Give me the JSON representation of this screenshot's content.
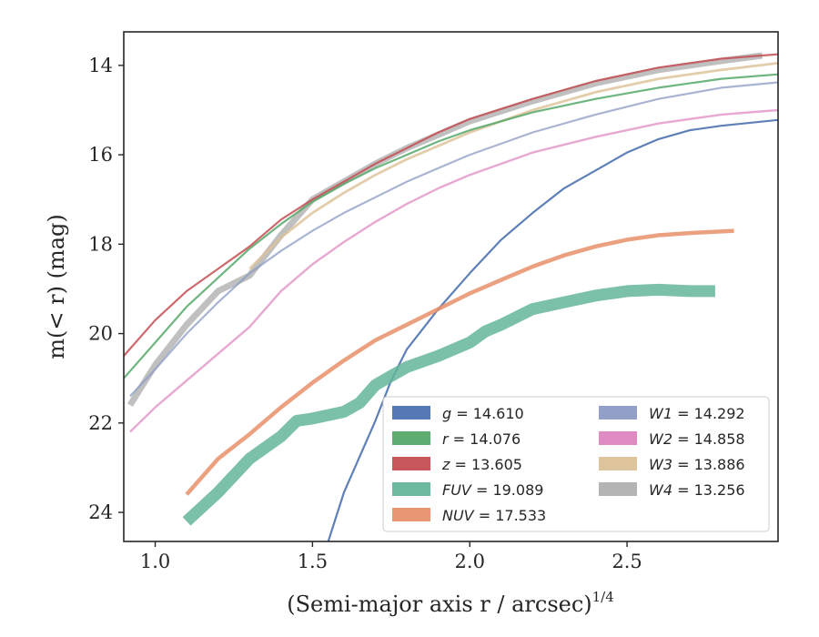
{
  "chart_data": {
    "type": "line",
    "xlabel": "(Semi-major axis r / arcsec)",
    "xlabel_exponent": "1/4",
    "ylabel": "m(< r) (mag)",
    "xlim": [
      0.9,
      2.98
    ],
    "ylim": [
      24.65,
      13.25
    ],
    "y_inverted": true,
    "grid": false,
    "legend_position": "lower-right",
    "legend_columns": 2,
    "x_ticks": [
      1.0,
      1.5,
      2.0,
      2.5
    ],
    "x_tick_labels": [
      "1.0",
      "1.5",
      "2.0",
      "2.5"
    ],
    "y_ticks": [
      14,
      16,
      18,
      20,
      22,
      24
    ],
    "y_tick_labels": [
      "14",
      "16",
      "18",
      "20",
      "22",
      "24"
    ],
    "series": [
      {
        "name": "g",
        "value": "14.610",
        "color": "#4c72b0",
        "points": [
          [
            1.55,
            24.65
          ],
          [
            1.6,
            23.55
          ],
          [
            1.65,
            22.75
          ],
          [
            1.7,
            21.95
          ],
          [
            1.75,
            21.05
          ],
          [
            1.8,
            20.35
          ],
          [
            1.9,
            19.45
          ],
          [
            2.0,
            18.65
          ],
          [
            2.1,
            17.9
          ],
          [
            2.2,
            17.3
          ],
          [
            2.3,
            16.75
          ],
          [
            2.4,
            16.35
          ],
          [
            2.5,
            15.95
          ],
          [
            2.6,
            15.65
          ],
          [
            2.7,
            15.45
          ],
          [
            2.8,
            15.35
          ],
          [
            2.98,
            15.22
          ]
        ]
      },
      {
        "name": "r",
        "value": "14.076",
        "color": "#55a868",
        "points": [
          [
            0.9,
            21.0
          ],
          [
            1.0,
            20.2
          ],
          [
            1.1,
            19.4
          ],
          [
            1.2,
            18.75
          ],
          [
            1.3,
            18.1
          ],
          [
            1.4,
            17.55
          ],
          [
            1.5,
            17.05
          ],
          [
            1.6,
            16.65
          ],
          [
            1.7,
            16.3
          ],
          [
            1.8,
            16.0
          ],
          [
            1.9,
            15.7
          ],
          [
            2.0,
            15.45
          ],
          [
            2.2,
            15.05
          ],
          [
            2.4,
            14.75
          ],
          [
            2.6,
            14.5
          ],
          [
            2.8,
            14.3
          ],
          [
            2.98,
            14.2
          ]
        ]
      },
      {
        "name": "z",
        "value": "13.605",
        "color": "#c44e52",
        "points": [
          [
            0.9,
            20.5
          ],
          [
            1.0,
            19.7
          ],
          [
            1.1,
            19.05
          ],
          [
            1.2,
            18.55
          ],
          [
            1.3,
            18.05
          ],
          [
            1.4,
            17.45
          ],
          [
            1.5,
            17.0
          ],
          [
            1.6,
            16.6
          ],
          [
            1.7,
            16.2
          ],
          [
            1.8,
            15.85
          ],
          [
            1.9,
            15.5
          ],
          [
            2.0,
            15.2
          ],
          [
            2.2,
            14.75
          ],
          [
            2.4,
            14.35
          ],
          [
            2.6,
            14.05
          ],
          [
            2.8,
            13.85
          ],
          [
            2.98,
            13.75
          ]
        ]
      },
      {
        "name": "FUV",
        "value": "19.089",
        "color": "#64b59a",
        "points": [
          [
            1.1,
            24.2
          ],
          [
            1.2,
            23.55
          ],
          [
            1.3,
            22.8
          ],
          [
            1.4,
            22.3
          ],
          [
            1.45,
            21.95
          ],
          [
            1.5,
            21.9
          ],
          [
            1.6,
            21.75
          ],
          [
            1.65,
            21.55
          ],
          [
            1.7,
            21.15
          ],
          [
            1.75,
            20.95
          ],
          [
            1.8,
            20.75
          ],
          [
            1.9,
            20.5
          ],
          [
            2.0,
            20.2
          ],
          [
            2.05,
            19.95
          ],
          [
            2.1,
            19.8
          ],
          [
            2.2,
            19.45
          ],
          [
            2.3,
            19.3
          ],
          [
            2.4,
            19.15
          ],
          [
            2.5,
            19.05
          ],
          [
            2.6,
            19.02
          ],
          [
            2.7,
            19.05
          ],
          [
            2.78,
            19.05
          ]
        ]
      },
      {
        "name": "NUV",
        "value": "17.533",
        "color": "#e8916a",
        "points": [
          [
            1.1,
            23.6
          ],
          [
            1.2,
            22.8
          ],
          [
            1.3,
            22.25
          ],
          [
            1.4,
            21.65
          ],
          [
            1.5,
            21.1
          ],
          [
            1.6,
            20.6
          ],
          [
            1.7,
            20.15
          ],
          [
            1.8,
            19.8
          ],
          [
            1.9,
            19.45
          ],
          [
            2.0,
            19.1
          ],
          [
            2.1,
            18.8
          ],
          [
            2.2,
            18.5
          ],
          [
            2.3,
            18.25
          ],
          [
            2.4,
            18.05
          ],
          [
            2.5,
            17.9
          ],
          [
            2.6,
            17.8
          ],
          [
            2.7,
            17.75
          ],
          [
            2.84,
            17.7
          ]
        ]
      },
      {
        "name": "W1",
        "value": "14.292",
        "color": "#8c9bc4",
        "points": [
          [
            0.92,
            21.4
          ],
          [
            1.0,
            20.8
          ],
          [
            1.1,
            20.0
          ],
          [
            1.2,
            19.3
          ],
          [
            1.3,
            18.65
          ],
          [
            1.4,
            18.15
          ],
          [
            1.5,
            17.7
          ],
          [
            1.6,
            17.3
          ],
          [
            1.7,
            16.95
          ],
          [
            1.8,
            16.6
          ],
          [
            1.9,
            16.3
          ],
          [
            2.0,
            16.0
          ],
          [
            2.2,
            15.5
          ],
          [
            2.4,
            15.1
          ],
          [
            2.6,
            14.75
          ],
          [
            2.8,
            14.5
          ],
          [
            2.98,
            14.38
          ]
        ]
      },
      {
        "name": "W2",
        "value": "14.858",
        "color": "#dd85bf",
        "points": [
          [
            0.92,
            22.2
          ],
          [
            1.0,
            21.65
          ],
          [
            1.1,
            21.05
          ],
          [
            1.2,
            20.45
          ],
          [
            1.3,
            19.85
          ],
          [
            1.4,
            19.05
          ],
          [
            1.5,
            18.45
          ],
          [
            1.6,
            17.95
          ],
          [
            1.7,
            17.5
          ],
          [
            1.8,
            17.1
          ],
          [
            1.9,
            16.75
          ],
          [
            2.0,
            16.45
          ],
          [
            2.2,
            15.95
          ],
          [
            2.4,
            15.6
          ],
          [
            2.6,
            15.3
          ],
          [
            2.8,
            15.1
          ],
          [
            2.98,
            15.0
          ]
        ]
      },
      {
        "name": "W3",
        "value": "13.886",
        "color": "#dcc196",
        "points": [
          [
            1.3,
            18.55
          ],
          [
            1.4,
            17.85
          ],
          [
            1.5,
            17.3
          ],
          [
            1.6,
            16.85
          ],
          [
            1.7,
            16.45
          ],
          [
            1.8,
            16.1
          ],
          [
            1.9,
            15.8
          ],
          [
            2.0,
            15.5
          ],
          [
            2.2,
            15.0
          ],
          [
            2.4,
            14.6
          ],
          [
            2.6,
            14.3
          ],
          [
            2.8,
            14.1
          ],
          [
            2.98,
            13.95
          ]
        ]
      },
      {
        "name": "W4",
        "value": "13.256",
        "color": "#b0b0b0",
        "points": [
          [
            0.92,
            21.6
          ],
          [
            1.0,
            20.7
          ],
          [
            1.1,
            19.8
          ],
          [
            1.2,
            19.05
          ],
          [
            1.3,
            18.7
          ],
          [
            1.4,
            17.8
          ],
          [
            1.5,
            17.0
          ],
          [
            1.6,
            16.6
          ],
          [
            1.7,
            16.2
          ],
          [
            1.8,
            15.85
          ],
          [
            1.9,
            15.55
          ],
          [
            2.0,
            15.25
          ],
          [
            2.2,
            14.8
          ],
          [
            2.4,
            14.4
          ],
          [
            2.6,
            14.1
          ],
          [
            2.8,
            13.9
          ],
          [
            2.93,
            13.78
          ]
        ]
      }
    ]
  }
}
